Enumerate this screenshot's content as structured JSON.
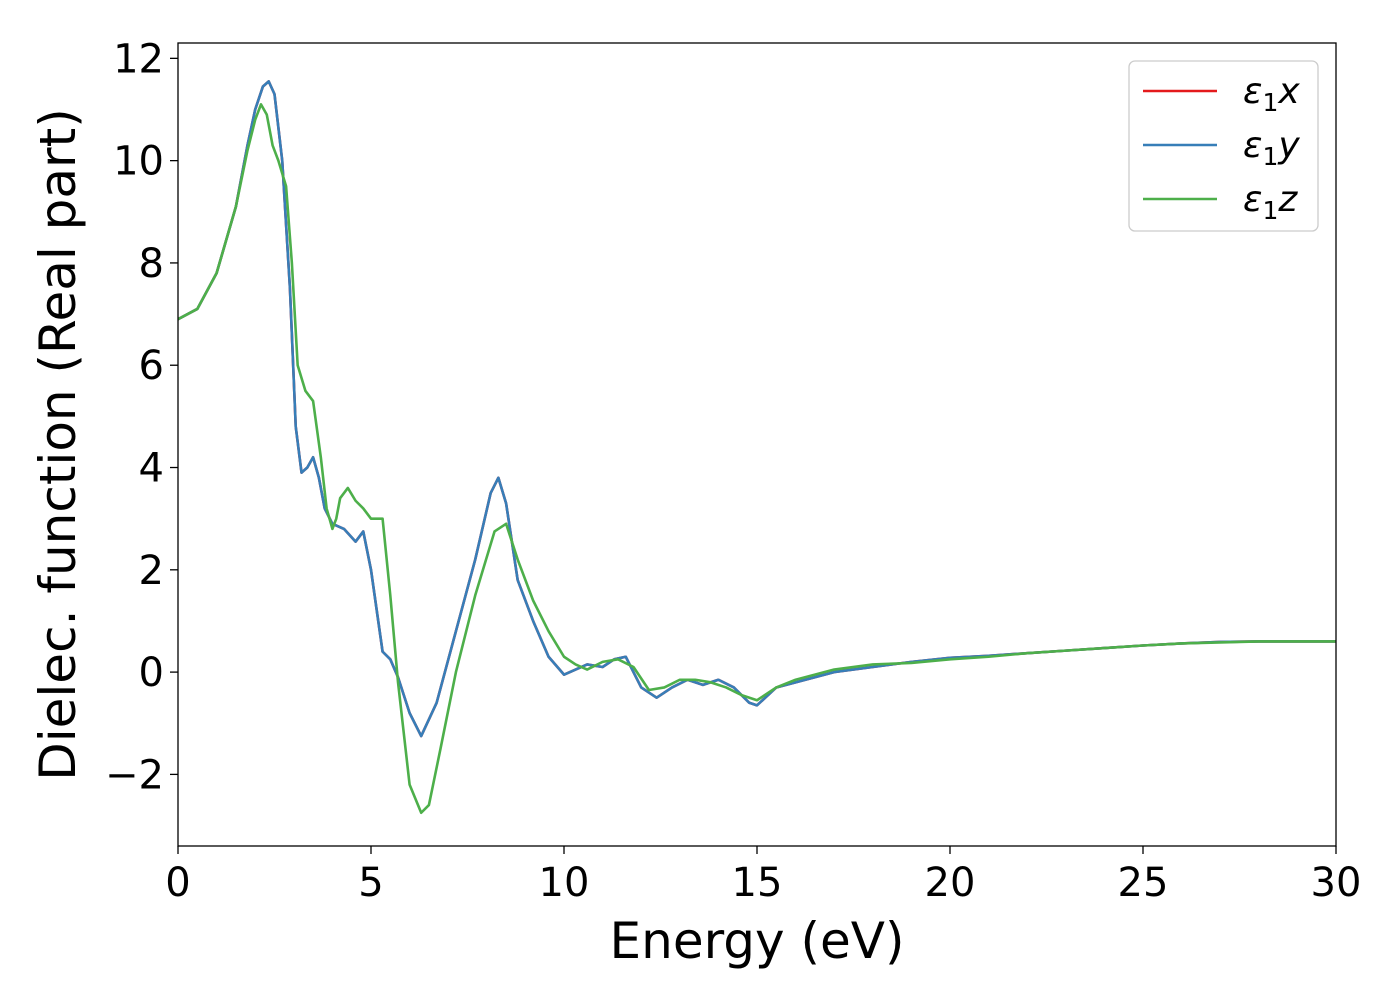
{
  "chart_data": {
    "type": "line",
    "title": "",
    "xlabel": "Energy (eV)",
    "ylabel": "Dielec. function (Real part)",
    "xlim": [
      0,
      30
    ],
    "ylim": [
      -3.4,
      12.3
    ],
    "xticks": [
      0,
      5,
      10,
      15,
      20,
      25,
      30
    ],
    "xtick_labels": [
      "0",
      "5",
      "10",
      "15",
      "20",
      "25",
      "30"
    ],
    "yticks": [
      -2,
      0,
      2,
      4,
      6,
      8,
      10,
      12
    ],
    "ytick_labels": [
      "−2",
      "0",
      "2",
      "4",
      "6",
      "8",
      "10",
      "12"
    ],
    "grid": false,
    "legend_position": "top-right",
    "series": [
      {
        "name": "ε₁x",
        "legend_base": "ε",
        "legend_sub": "1",
        "legend_suffix": "x",
        "color": "#e41a1c",
        "x": [
          0,
          0.5,
          1.0,
          1.5,
          1.8,
          2.0,
          2.2,
          2.35,
          2.5,
          2.7,
          2.9,
          3.05,
          3.2,
          3.35,
          3.5,
          3.65,
          3.8,
          4.0,
          4.3,
          4.6,
          4.8,
          5.0,
          5.3,
          5.5,
          5.7,
          6.0,
          6.3,
          6.7,
          7.2,
          7.7,
          8.1,
          8.3,
          8.5,
          8.8,
          9.2,
          9.6,
          10.0,
          10.3,
          10.6,
          11.0,
          11.3,
          11.6,
          12.0,
          12.4,
          12.8,
          13.2,
          13.6,
          14.0,
          14.4,
          14.8,
          15.0,
          15.5,
          16.0,
          16.5,
          17.0,
          18.0,
          19.0,
          20.0,
          21.0,
          22.0,
          23.0,
          24.0,
          25.0,
          26.0,
          27.0,
          28.0,
          29.0,
          30.0
        ],
        "values": [
          6.9,
          7.1,
          7.8,
          9.1,
          10.3,
          11.0,
          11.45,
          11.55,
          11.3,
          10.0,
          7.5,
          4.8,
          3.9,
          4.0,
          4.2,
          3.8,
          3.2,
          2.9,
          2.8,
          2.55,
          2.75,
          2.0,
          0.4,
          0.25,
          -0.1,
          -0.8,
          -1.25,
          -0.6,
          0.8,
          2.2,
          3.5,
          3.8,
          3.3,
          1.8,
          1.0,
          0.3,
          -0.05,
          0.05,
          0.15,
          0.1,
          0.25,
          0.3,
          -0.3,
          -0.5,
          -0.3,
          -0.15,
          -0.25,
          -0.15,
          -0.3,
          -0.6,
          -0.65,
          -0.3,
          -0.2,
          -0.1,
          0.0,
          0.1,
          0.2,
          0.28,
          0.32,
          0.37,
          0.42,
          0.47,
          0.52,
          0.56,
          0.59,
          0.6,
          0.6,
          0.6
        ]
      },
      {
        "name": "ε₁y",
        "legend_base": "ε",
        "legend_sub": "1",
        "legend_suffix": "y",
        "color": "#377eb8",
        "x": [
          0,
          0.5,
          1.0,
          1.5,
          1.8,
          2.0,
          2.2,
          2.35,
          2.5,
          2.7,
          2.9,
          3.05,
          3.2,
          3.35,
          3.5,
          3.65,
          3.8,
          4.0,
          4.3,
          4.6,
          4.8,
          5.0,
          5.3,
          5.5,
          5.7,
          6.0,
          6.3,
          6.7,
          7.2,
          7.7,
          8.1,
          8.3,
          8.5,
          8.8,
          9.2,
          9.6,
          10.0,
          10.3,
          10.6,
          11.0,
          11.3,
          11.6,
          12.0,
          12.4,
          12.8,
          13.2,
          13.6,
          14.0,
          14.4,
          14.8,
          15.0,
          15.5,
          16.0,
          16.5,
          17.0,
          18.0,
          19.0,
          20.0,
          21.0,
          22.0,
          23.0,
          24.0,
          25.0,
          26.0,
          27.0,
          28.0,
          29.0,
          30.0
        ],
        "values": [
          6.9,
          7.1,
          7.8,
          9.1,
          10.3,
          11.0,
          11.45,
          11.55,
          11.3,
          10.0,
          7.5,
          4.8,
          3.9,
          4.0,
          4.2,
          3.8,
          3.2,
          2.9,
          2.8,
          2.55,
          2.75,
          2.0,
          0.4,
          0.25,
          -0.1,
          -0.8,
          -1.25,
          -0.6,
          0.8,
          2.2,
          3.5,
          3.8,
          3.3,
          1.8,
          1.0,
          0.3,
          -0.05,
          0.05,
          0.15,
          0.1,
          0.25,
          0.3,
          -0.3,
          -0.5,
          -0.3,
          -0.15,
          -0.25,
          -0.15,
          -0.3,
          -0.6,
          -0.65,
          -0.3,
          -0.2,
          -0.1,
          0.0,
          0.1,
          0.2,
          0.28,
          0.32,
          0.37,
          0.42,
          0.47,
          0.52,
          0.56,
          0.59,
          0.6,
          0.6,
          0.6
        ]
      },
      {
        "name": "ε₁z",
        "legend_base": "ε",
        "legend_sub": "1",
        "legend_suffix": "z",
        "color": "#4daf4a",
        "x": [
          0,
          0.5,
          1.0,
          1.5,
          1.8,
          2.0,
          2.15,
          2.3,
          2.45,
          2.6,
          2.8,
          2.95,
          3.1,
          3.3,
          3.5,
          3.7,
          3.85,
          4.0,
          4.1,
          4.2,
          4.4,
          4.6,
          4.8,
          5.0,
          5.3,
          5.5,
          5.7,
          6.0,
          6.3,
          6.5,
          6.8,
          7.2,
          7.7,
          8.2,
          8.5,
          8.8,
          9.2,
          9.6,
          10.0,
          10.3,
          10.6,
          11.0,
          11.4,
          11.8,
          12.2,
          12.6,
          13.0,
          13.4,
          13.8,
          14.2,
          14.6,
          15.0,
          15.5,
          16.0,
          16.5,
          17.0,
          18.0,
          19.0,
          20.0,
          21.0,
          22.0,
          23.0,
          24.0,
          25.0,
          26.0,
          27.0,
          28.0,
          29.0,
          30.0
        ],
        "values": [
          6.9,
          7.1,
          7.8,
          9.1,
          10.2,
          10.8,
          11.1,
          10.9,
          10.3,
          10.0,
          9.5,
          8.0,
          6.0,
          5.5,
          5.3,
          4.2,
          3.2,
          2.8,
          3.0,
          3.4,
          3.6,
          3.35,
          3.2,
          3.0,
          3.0,
          1.5,
          -0.2,
          -2.2,
          -2.75,
          -2.6,
          -1.5,
          0.0,
          1.5,
          2.75,
          2.9,
          2.2,
          1.4,
          0.8,
          0.3,
          0.15,
          0.05,
          0.2,
          0.25,
          0.1,
          -0.35,
          -0.3,
          -0.15,
          -0.15,
          -0.2,
          -0.3,
          -0.45,
          -0.55,
          -0.3,
          -0.15,
          -0.05,
          0.05,
          0.15,
          0.18,
          0.25,
          0.3,
          0.37,
          0.42,
          0.47,
          0.52,
          0.56,
          0.58,
          0.6,
          0.6,
          0.6
        ]
      }
    ]
  }
}
